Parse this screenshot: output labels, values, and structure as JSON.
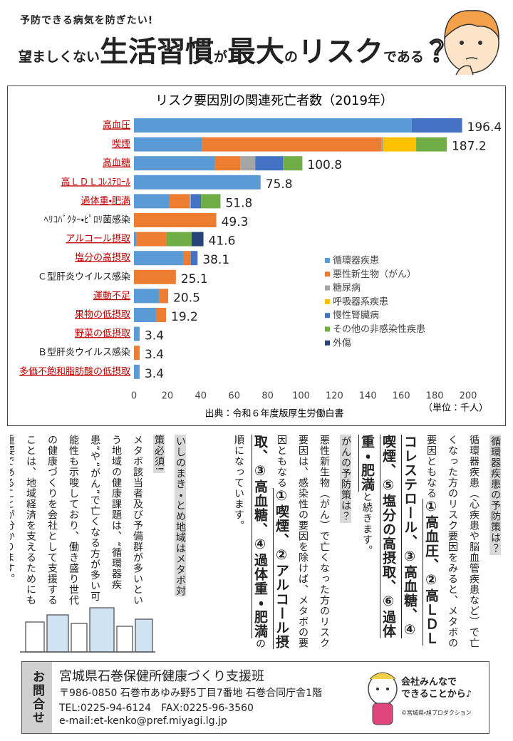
{
  "header": {
    "lead": "予防できる病気を防ぎたい!",
    "headline": [
      "望ましくない",
      "生活習慣",
      "が",
      "最大",
      "の",
      "リスク",
      "である",
      "？"
    ]
  },
  "chart_data": {
    "type": "bar",
    "orientation": "horizontal",
    "stacked": true,
    "title": "リスク要因別の関連死亡者数（2019年）",
    "categories": [
      "高血圧",
      "喫煙",
      "高血糖",
      "高ＬＤＬｺﾚｽﾃﾛｰﾙ",
      "過体重・肥満",
      "ﾍﾘｺﾊﾞｸﾀｰ・ﾋﾟﾛﾘ菌感染",
      "アルコール摂取",
      "塩分の高摂取",
      "Ｃ型肝炎ウイルス感染",
      "運動不足",
      "果物の低摂取",
      "野菜の低摂取",
      "Ｂ型肝炎ウイルス感染",
      "多価不飽和脂肪酸の低摂取"
    ],
    "highlight": [
      true,
      true,
      true,
      true,
      true,
      false,
      true,
      true,
      false,
      true,
      true,
      true,
      false,
      true
    ],
    "series": [
      {
        "name": "循環器疾患",
        "color": "#5b9bd5",
        "values": [
          166.3,
          40.9,
          48.2,
          75.8,
          20.9,
          null,
          1.3,
          29.4,
          null,
          14.9,
          13.2,
          3.4,
          null,
          3.4
        ]
      },
      {
        "name": "悪性新生物（がん）",
        "color": "#ed7d31",
        "values": [
          null,
          107.1,
          15.4,
          null,
          12.4,
          49.3,
          18.3,
          4.7,
          25.1,
          5.6,
          6.0,
          null,
          3.4,
          null
        ]
      },
      {
        "name": "糖尿病",
        "color": "#a5a5a5",
        "values": [
          null,
          1.3,
          9.0,
          null,
          0.8,
          null,
          null,
          null,
          null,
          null,
          null,
          null,
          null,
          null
        ]
      },
      {
        "name": "呼吸器系疾患",
        "color": "#ffc000",
        "values": [
          null,
          19.6,
          null,
          null,
          null,
          null,
          null,
          null,
          null,
          null,
          null,
          null,
          null,
          null
        ]
      },
      {
        "name": "慢性腎臓病",
        "color": "#4472c4",
        "values": [
          30.1,
          null,
          16.6,
          null,
          6.0,
          null,
          null,
          4.0,
          null,
          null,
          null,
          null,
          null,
          null
        ]
      },
      {
        "name": "その他の非感染性疾患",
        "color": "#70ad47",
        "values": [
          null,
          18.3,
          11.6,
          null,
          11.7,
          null,
          14.9,
          null,
          null,
          null,
          null,
          null,
          null,
          null
        ]
      },
      {
        "name": "外傷",
        "color": "#264478",
        "values": [
          null,
          null,
          null,
          null,
          null,
          null,
          7.1,
          null,
          null,
          null,
          null,
          null,
          null,
          null
        ]
      }
    ],
    "totals": [
      196.4,
      187.2,
      100.8,
      75.8,
      51.8,
      49.3,
      41.6,
      38.1,
      25.1,
      20.5,
      19.2,
      3.4,
      3.4,
      3.4
    ],
    "xlim": [
      0,
      200
    ],
    "xticks": [
      0,
      20,
      40,
      60,
      80,
      100,
      120,
      140,
      160,
      180,
      200
    ],
    "source": "出典：令和６年度版厚生労働白書",
    "unit": "（単位：千人）"
  },
  "article": {
    "sections": [
      {
        "heading": "循環器疾患の予防策は？",
        "before": "循環器疾患（心疾患や脳血管疾患など）で亡くなった方のリスク要因をみると、メタボの要因ともなる",
        "emphasis": "①高血圧、②高ＬＤＬコレステロール、③高血糖、④喫煙、⑤塩分の高摂取、⑥過体重・肥満",
        "after": "と続きます。"
      },
      {
        "heading": "がんの予防策は？",
        "before": "悪性新生物（がん）で亡くなった方のリスク要因は、感染性の要因を除けば、メタボの要因ともなる",
        "emphasis": "①喫煙、②アルコール摂取、③高血糖、④過体重・肥満",
        "after": "の順になっています。"
      },
      {
        "heading": "いしのまき・とめ地域はメタボ対策必須!",
        "text": "メタボ該当者及び予備群が多いという地域の健康課題は、“循環器疾患”や“がん”で亡くなる方が多い可能性も示唆しており、働き盛り世代の健康づくりを会社として支援することは、地域経済を支えるためにも重要であることが分かります。"
      }
    ]
  },
  "contact": {
    "label": "お問合せ",
    "lines": [
      "宮城県石巻保健所健康づくり支援班",
      "〒986-0850 石巻市あゆみ野5丁目7番地 石巻合同庁舎1階",
      "TEL:0225-94-6124　FAX:0225-96-3560",
      "e-mail:et-kenko@pref.miyagi.lg.jp"
    ]
  },
  "mascot": {
    "slogan": [
      "会社みんなで",
      "できることから♪"
    ],
    "credit": "©宮城県・旭プロダクション"
  }
}
